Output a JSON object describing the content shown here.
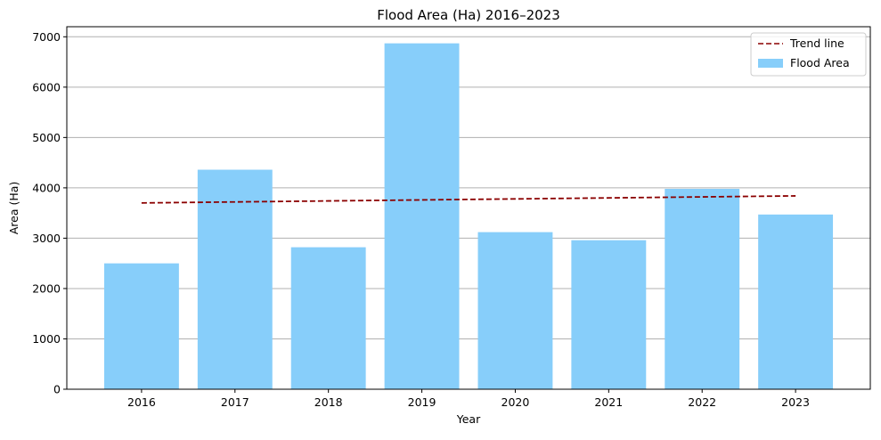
{
  "chart_data": {
    "type": "bar",
    "title": "Flood Area (Ha) 2016–2023",
    "xlabel": "Year",
    "ylabel": "Area (Ha)",
    "categories": [
      "2016",
      "2017",
      "2018",
      "2019",
      "2020",
      "2021",
      "2022",
      "2023"
    ],
    "series": [
      {
        "name": "Flood Area",
        "type": "bar",
        "color": "#87cefa",
        "values": [
          2500,
          4360,
          2820,
          6870,
          3120,
          2960,
          3980,
          3470
        ]
      },
      {
        "name": "Trend line",
        "type": "line",
        "style": "dashed",
        "color": "#8b0000",
        "values": [
          3700,
          3720,
          3740,
          3760,
          3780,
          3800,
          3820,
          3840
        ]
      }
    ],
    "ylim": [
      0,
      7200
    ],
    "yticks": [
      0,
      1000,
      2000,
      3000,
      4000,
      5000,
      6000,
      7000
    ],
    "grid": "y-axis major",
    "legend_position": "top-right"
  }
}
